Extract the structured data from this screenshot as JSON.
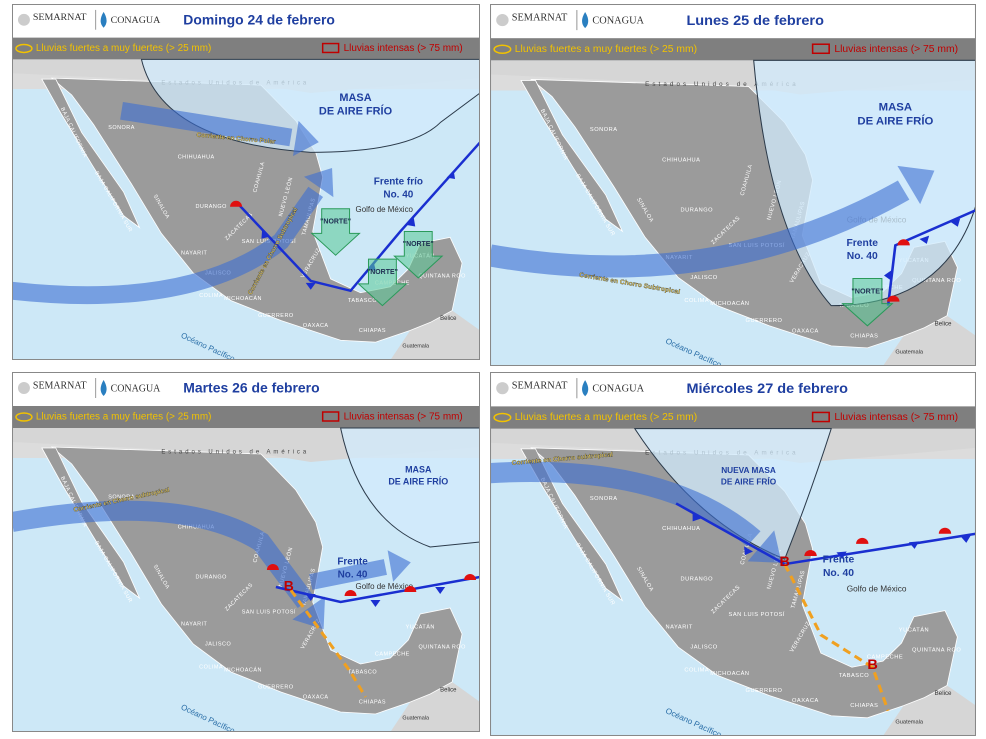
{
  "header": {
    "semarnat": "SEMARNAT",
    "conagua": "CONAGUA"
  },
  "legend": {
    "heavy": "Lluvias fuertes a muy fuertes  (> 25 mm)",
    "intense": "Lluvias intensas (> 75 mm)"
  },
  "map": {
    "country": "Estados Unidos de América",
    "gulf": "Golfo de México",
    "ocean": "Océano Pacífico",
    "belize": "Belice",
    "guatemala": "Guatemala",
    "states": [
      "SONORA",
      "CHIHUAHUA",
      "COAHUILA",
      "NUEVO LEÓN",
      "TAMAULIPAS",
      "DURANGO",
      "SINALOA",
      "BAJA CALIFORNIA",
      "BAJA CALIFORNIA SUR",
      "ZACATECAS",
      "SAN LUIS POTOSÍ",
      "NAYARIT",
      "JALISCO",
      "COLIMA",
      "MICHOACÁN",
      "GUERRERO",
      "OAXACA",
      "CHIAPAS",
      "VERACRUZ",
      "TABASCO",
      "CAMPECHE",
      "YUCATÁN",
      "QUINTANA ROO"
    ]
  },
  "panels": [
    {
      "title": "Domingo 24 de febrero",
      "air_mass": [
        "MASA",
        "DE AIRE FRÍO"
      ],
      "front": [
        "Frente frío",
        "No. 40"
      ],
      "jets": [
        "Corriente en Chorro Polar",
        "Corriente en Chorro Subtropical"
      ],
      "norte": "\"NORTE\""
    },
    {
      "title": "Lunes 25 de febrero",
      "air_mass": [
        "MASA",
        "DE AIRE FRÍO"
      ],
      "front": [
        "Frente",
        "No. 40"
      ],
      "jets": [
        "Corriente en Chorro Subtropical"
      ],
      "norte": "\"NORTE\""
    },
    {
      "title": "Martes 26 de febrero",
      "air_mass": [
        "MASA",
        "DE AIRE FRÍO"
      ],
      "front": [
        "Frente",
        "No. 40"
      ],
      "jets": [
        "Corriente en Chorro subtropical"
      ],
      "low": "B"
    },
    {
      "title": "Miércoles 27 de febrero",
      "air_mass": [
        "NUEVA MASA",
        "DE AIRE FRÍO"
      ],
      "front": [
        "Frente",
        "No. 40"
      ],
      "jets": [
        "Corriente en Chorro subtropical"
      ],
      "low": "B"
    }
  ]
}
